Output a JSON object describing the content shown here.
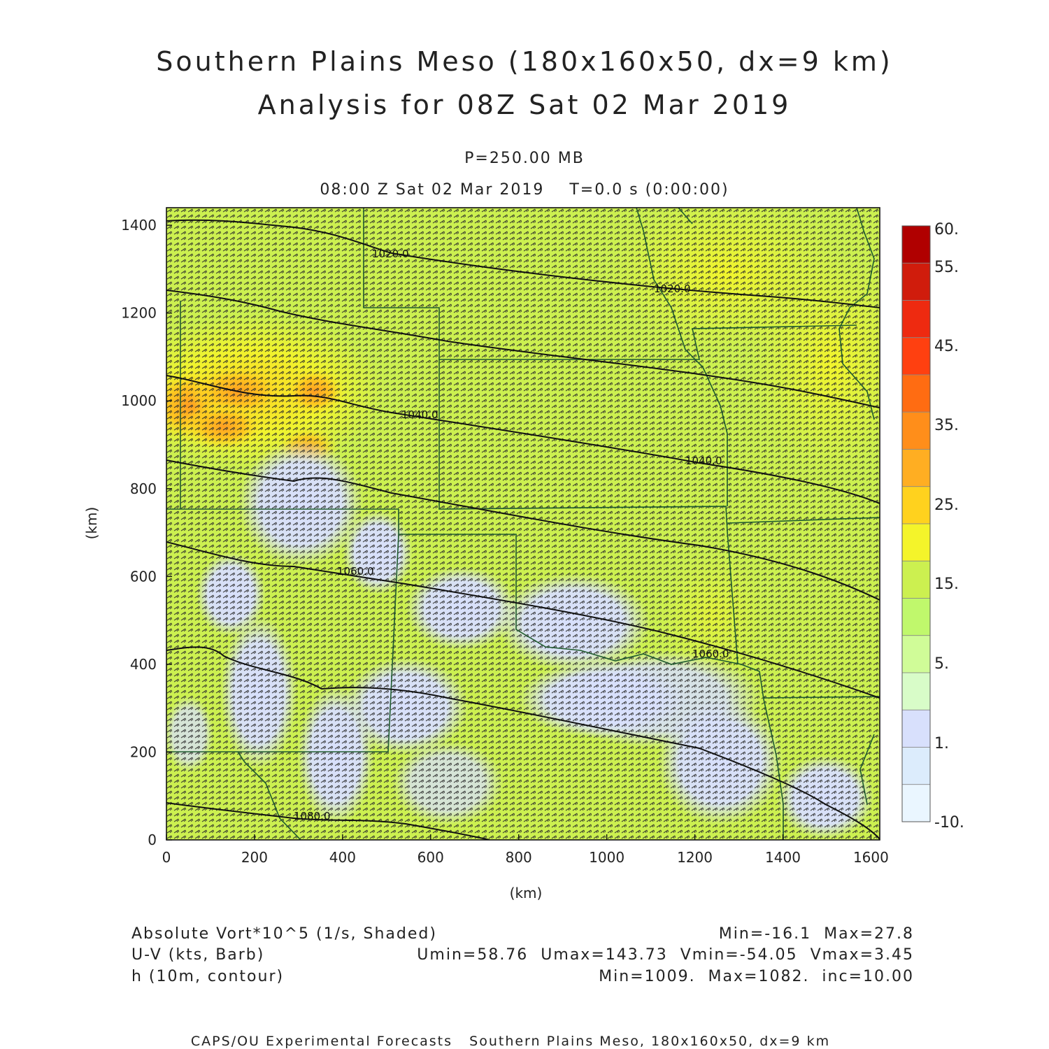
{
  "title": {
    "line1": "Southern Plains Meso (180x160x50, dx=9 km)",
    "line2": "Analysis for 08Z Sat 02 Mar 2019"
  },
  "subtitle": {
    "level": "P=250.00 MB",
    "time": "08:00 Z Sat 02 Mar 2019    T=0.0 s (0:00:00)"
  },
  "axes": {
    "x_label": "(km)",
    "y_label": "(km)",
    "x_ticks": [
      0,
      200,
      400,
      600,
      800,
      1000,
      1200,
      1400,
      1600
    ],
    "y_ticks": [
      0,
      200,
      400,
      600,
      800,
      1000,
      1200,
      1400
    ],
    "x_range": [
      0,
      1620
    ],
    "y_range": [
      0,
      1440
    ]
  },
  "colorbar": {
    "labels": [
      "60.",
      "55.",
      "45.",
      "35.",
      "25.",
      "15.",
      "5.",
      "1.",
      "-10."
    ],
    "colors": [
      "#b00000",
      "#d01c0c",
      "#ee2a10",
      "#ff4010",
      "#ff6c12",
      "#ff8e1a",
      "#ffae22",
      "#ffd21e",
      "#f4f42a",
      "#ccf050",
      "#c0f86c",
      "#d0fc98",
      "#d8fcc8",
      "#d8e0fc",
      "#dcecfc",
      "#eaf6ff"
    ]
  },
  "contours": {
    "labels": [
      "1020.0",
      "1020.0",
      "1040.0",
      "1040.0",
      "1060.0",
      "1060.0",
      "1080.0"
    ]
  },
  "legend": {
    "row1_left": "Absolute Vort*10^5 (1/s, Shaded)",
    "row1_right": "Min=-16.1  Max=27.8",
    "row2_left": "U-V (kts, Barb)",
    "row2_right": "Umin=58.76  Umax=143.73  Vmin=-54.05  Vmax=3.45",
    "row3_left": "h (10m, contour)",
    "row3_right": "Min=1009.  Max=1082.  inc=10.00"
  },
  "footer": "CAPS/OU Experimental Forecasts   Southern Plains Meso, 180x160x50, dx=9 km"
}
